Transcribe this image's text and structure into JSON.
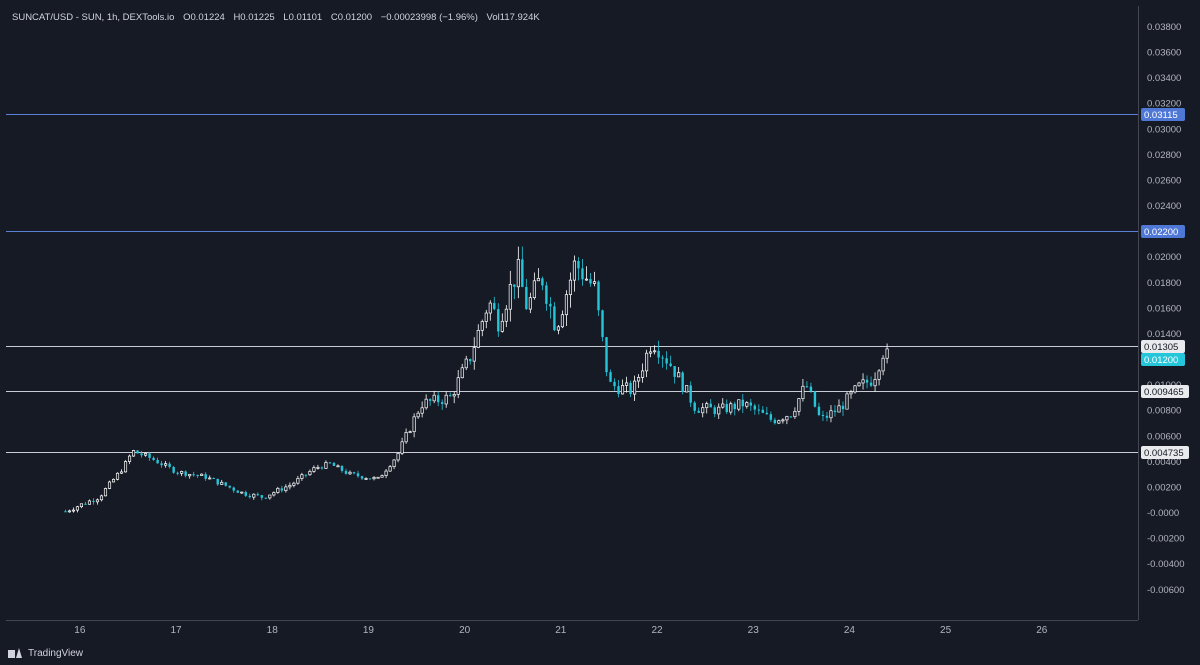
{
  "header": {
    "symbol": "SUNCAT/USD - SUN, 1h, DEXTools.io",
    "open": "O0.01224",
    "high": "H0.01225",
    "low": "L0.01101",
    "close": "C0.01200",
    "change": "−0.00023998 (−1.96%)",
    "volume": "Vol117.924K"
  },
  "footer": {
    "brand": "TradingView",
    "logo_icon": "tradingview-logo-icon"
  },
  "colors": {
    "background": "#161a25",
    "grid": "#2a2e39",
    "up_candle": "#ffffff",
    "down_candle": "#26c6da",
    "line_blue": "#5b7fd6",
    "line_white": "#c8cbd2",
    "current_price": "#26c6da"
  },
  "chart_data": {
    "type": "candlestick",
    "title": "SUNCAT/USD - SUN, 1h, DEXTools.io",
    "x_ticks": [
      "16",
      "17",
      "18",
      "19",
      "20",
      "21",
      "22",
      "23",
      "24",
      "25",
      "26"
    ],
    "x_range": [
      15.17,
      27.0
    ],
    "y_ticks": [
      "0.03800",
      "0.03600",
      "0.03400",
      "0.03200",
      "0.03000",
      "0.02800",
      "0.02600",
      "0.02400",
      "0.02200",
      "0.02000",
      "0.01800",
      "0.01600",
      "0.01400",
      "0.01200",
      "0.01000",
      "0.00800",
      "0.00600",
      "0.00400",
      "0.00200",
      "-0.0000",
      "-0.00200",
      "-0.00400",
      "-0.00600"
    ],
    "ylim": [
      -0.0084,
      0.0396
    ],
    "horizontal_lines": [
      {
        "value": 0.03115,
        "label": "0.03115",
        "style": "blue"
      },
      {
        "value": 0.022,
        "label": "0.02200",
        "style": "blue"
      },
      {
        "value": 0.01305,
        "label": "0.01305",
        "style": "white"
      },
      {
        "value": 0.009465,
        "label": "0.009465",
        "style": "white"
      },
      {
        "value": 0.004735,
        "label": "0.004735",
        "style": "white"
      }
    ],
    "current_price": {
      "value": 0.012,
      "label": "0.01200"
    },
    "price_path": [
      [
        15.85,
        0.0001
      ],
      [
        16.2,
        0.0012
      ],
      [
        16.45,
        0.0035
      ],
      [
        16.55,
        0.0048
      ],
      [
        16.75,
        0.0042
      ],
      [
        17.0,
        0.0032
      ],
      [
        17.3,
        0.0028
      ],
      [
        17.7,
        0.0015
      ],
      [
        17.9,
        0.0012
      ],
      [
        18.2,
        0.0022
      ],
      [
        18.45,
        0.0035
      ],
      [
        18.6,
        0.0038
      ],
      [
        18.8,
        0.003
      ],
      [
        19.1,
        0.0026
      ],
      [
        19.3,
        0.0045
      ],
      [
        19.55,
        0.0085
      ],
      [
        19.85,
        0.009
      ],
      [
        20.05,
        0.012
      ],
      [
        20.25,
        0.0165
      ],
      [
        20.35,
        0.015
      ],
      [
        20.55,
        0.019
      ],
      [
        20.65,
        0.016
      ],
      [
        20.8,
        0.0185
      ],
      [
        20.95,
        0.0145
      ],
      [
        21.15,
        0.0195
      ],
      [
        21.35,
        0.0175
      ],
      [
        21.5,
        0.01
      ],
      [
        21.75,
        0.0095
      ],
      [
        21.95,
        0.0135
      ],
      [
        22.15,
        0.0115
      ],
      [
        22.4,
        0.0082
      ],
      [
        22.65,
        0.008
      ],
      [
        22.9,
        0.0085
      ],
      [
        23.2,
        0.0072
      ],
      [
        23.4,
        0.0078
      ],
      [
        23.55,
        0.01
      ],
      [
        23.7,
        0.0072
      ],
      [
        23.9,
        0.0082
      ],
      [
        24.1,
        0.0098
      ],
      [
        24.25,
        0.0105
      ],
      [
        24.35,
        0.0126
      ],
      [
        24.42,
        0.012
      ]
    ]
  }
}
